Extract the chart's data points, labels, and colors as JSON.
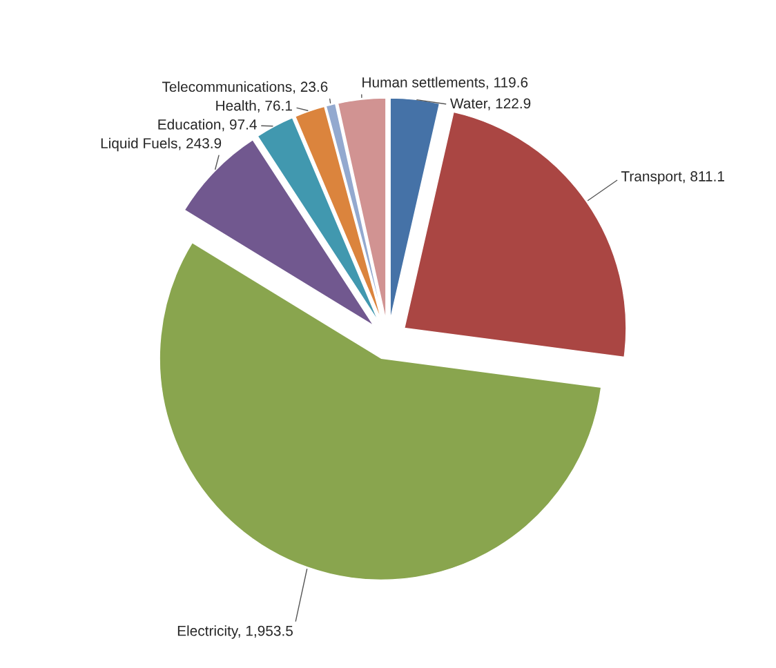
{
  "chart_data": {
    "type": "pie",
    "categories": [
      "Water",
      "Transport",
      "Electricity",
      "Liquid Fuels",
      "Education",
      "Health",
      "Telecommunications",
      "Human settlements"
    ],
    "values": [
      122.9,
      811.1,
      1953.5,
      243.9,
      97.4,
      76.1,
      23.6,
      119.6
    ],
    "value_labels": [
      "122.9",
      "811.1",
      "1,953.5",
      "243.9",
      "97.4",
      "76.1",
      "23.6",
      "119.6"
    ],
    "colors": [
      "#4572a7",
      "#aa4643",
      "#89a54e",
      "#71588f",
      "#4198af",
      "#db843d",
      "#93a9cf",
      "#d19392"
    ],
    "legend": false
  }
}
